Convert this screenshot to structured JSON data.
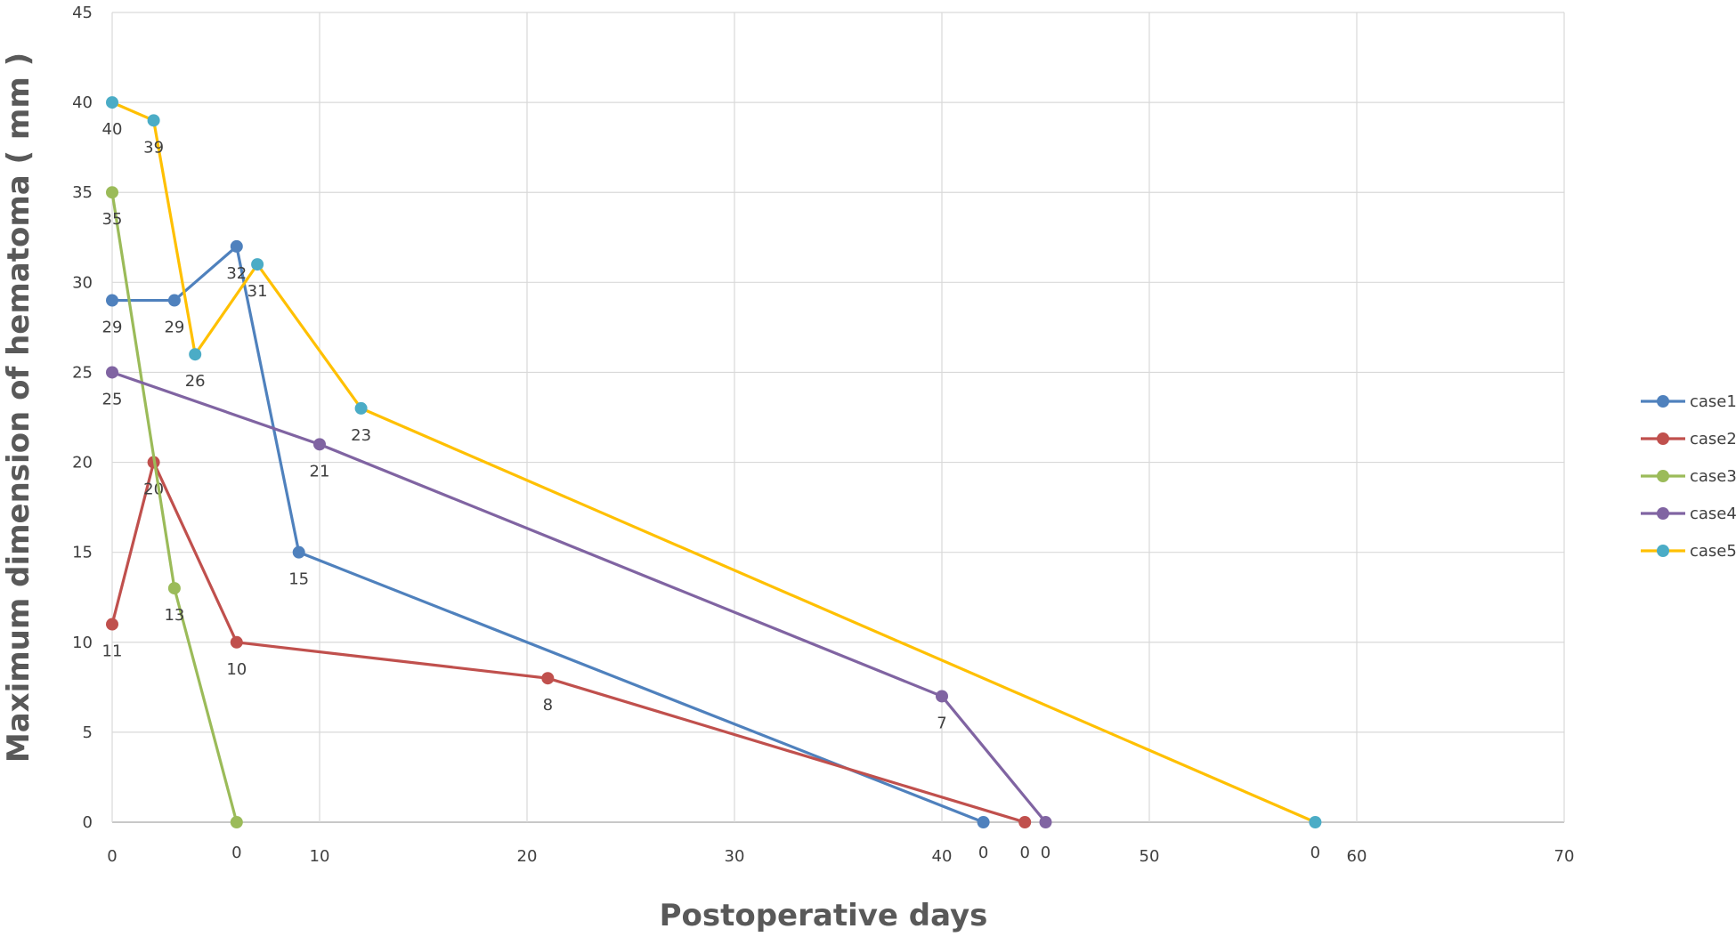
{
  "chart_data": {
    "type": "line",
    "xlabel": "Postoperative days",
    "ylabel": "Maximum dimension of hematoma ( mm )",
    "xlim": [
      0,
      70
    ],
    "ylim": [
      0,
      45
    ],
    "x_ticks": [
      0,
      10,
      20,
      30,
      40,
      50,
      60,
      70
    ],
    "y_ticks": [
      0,
      5,
      10,
      15,
      20,
      25,
      30,
      35,
      40,
      45
    ],
    "grid": true,
    "legend_position": "right",
    "series": [
      {
        "name": "case1",
        "color": "#4F81BD",
        "marker": "#4F81BD",
        "x": [
          0,
          3,
          6,
          9,
          42
        ],
        "y": [
          29,
          29,
          32,
          15,
          0
        ],
        "labels": [
          "29",
          "29",
          "32",
          "15",
          "0"
        ]
      },
      {
        "name": "case2",
        "color": "#C0504D",
        "marker": "#C0504D",
        "x": [
          0,
          2,
          6,
          21,
          44
        ],
        "y": [
          11,
          20,
          10,
          8,
          0
        ],
        "labels": [
          "11",
          "20",
          "10",
          "8",
          "0"
        ]
      },
      {
        "name": "case3",
        "color": "#9BBB59",
        "marker": "#9BBB59",
        "x": [
          0,
          3,
          6
        ],
        "y": [
          35,
          13,
          0
        ],
        "labels": [
          "35",
          "13",
          "0"
        ]
      },
      {
        "name": "case4",
        "color": "#8064A2",
        "marker": "#8064A2",
        "x": [
          0,
          10,
          40,
          45
        ],
        "y": [
          25,
          21,
          7,
          0
        ],
        "labels": [
          "25",
          "21",
          "7",
          "0"
        ]
      },
      {
        "name": "case5",
        "color": "#FFC000",
        "marker": "#4BACC6",
        "x": [
          0,
          2,
          4,
          7,
          12,
          58
        ],
        "y": [
          40,
          39,
          26,
          31,
          23,
          0
        ],
        "labels": [
          "40",
          "39",
          "26",
          "31",
          "23",
          "0"
        ]
      }
    ]
  }
}
